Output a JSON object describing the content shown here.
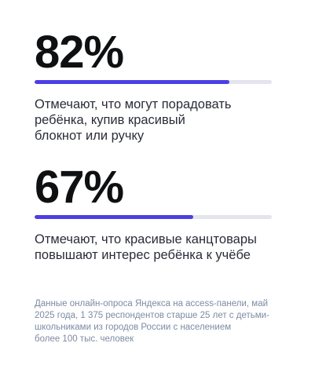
{
  "stats": [
    {
      "value_text": "82%",
      "progress_percent": 82,
      "caption": "Отмечают, что могут порадовать\nребёнка, купив красивый\nблокнот или ручку"
    },
    {
      "value_text": "67%",
      "progress_percent": 67,
      "caption": "Отмечают, что красивые канцтовары\nповышают интерес ребёнка к учёбе"
    }
  ],
  "footnote": "Данные онлайн-опроса Яндекса на access-панели, май\n2025 года, 1 375 респондентов старше 25 лет с детьми-\nшкольниками из городов России с населением\nболее 100 тыс. человек",
  "colors": {
    "accent": "#4c3ee6",
    "track": "#e3e4ec",
    "heading": "#0f1012",
    "body": "#2a2d37",
    "muted": "#7d8ba3"
  }
}
